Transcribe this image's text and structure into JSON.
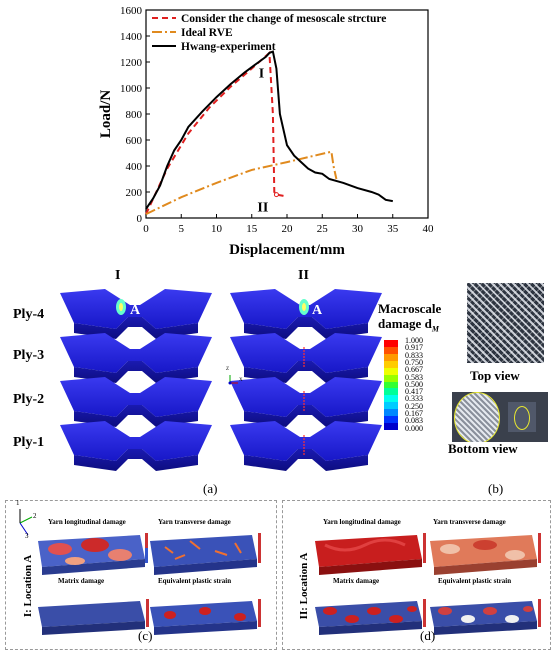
{
  "chart_data": {
    "type": "line",
    "xlabel": "Displacement/mm",
    "ylabel": "Load/N",
    "xlim": [
      0,
      40
    ],
    "ylim": [
      0,
      1600
    ],
    "xticks": [
      "0",
      "5",
      "10",
      "15",
      "20",
      "25",
      "30",
      "35",
      "40"
    ],
    "yticks": [
      "0",
      "200",
      "400",
      "600",
      "800",
      "1000",
      "1200",
      "1400",
      "1600"
    ],
    "legend_position": "top-left",
    "series": [
      {
        "name": "Consider the change of mesoscale strcture",
        "color": "#e02020",
        "dash": "6,4",
        "x": [
          0,
          3,
          6,
          9,
          12,
          15,
          17.5,
          18,
          18.2,
          18.5,
          19.5
        ],
        "y": [
          30,
          380,
          650,
          850,
          1010,
          1150,
          1270,
          800,
          200,
          180,
          170
        ]
      },
      {
        "name": "Ideal RVE",
        "color": "#e08a1e",
        "dash": "10,3,2,3",
        "x": [
          0,
          5,
          10,
          15,
          20,
          26.3,
          26.6,
          27
        ],
        "y": [
          30,
          160,
          270,
          370,
          430,
          510,
          400,
          300
        ]
      },
      {
        "name": "Hwang-experiment",
        "color": "#000000",
        "dash": "",
        "x": [
          0,
          1,
          2,
          3,
          4,
          5,
          6,
          8,
          10,
          12,
          14,
          16,
          17,
          17.5,
          18,
          18.5,
          19,
          20,
          21,
          22,
          23,
          24,
          25,
          26,
          28,
          30,
          32,
          33,
          34,
          35
        ],
        "y": [
          70,
          150,
          250,
          400,
          520,
          600,
          700,
          820,
          930,
          1030,
          1120,
          1200,
          1240,
          1270,
          1280,
          1150,
          800,
          560,
          480,
          430,
          380,
          350,
          340,
          300,
          270,
          230,
          200,
          180,
          140,
          130
        ]
      }
    ],
    "annotations": [
      "I",
      "II"
    ]
  },
  "figure": {
    "col_I": "I",
    "col_II": "II",
    "plies": [
      "Ply-4",
      "Ply-3",
      "Ply-2",
      "Ply-1"
    ],
    "point_label": "A",
    "legend_title_line1": "Macroscale",
    "legend_title_line2": "damage d",
    "legend_subscript": "M",
    "legend_values": [
      "1.000",
      "0.917",
      "0.833",
      "0.750",
      "0.667",
      "0.583",
      "0.500",
      "0.417",
      "0.333",
      "0.250",
      "0.167",
      "0.083",
      "0.000"
    ],
    "legend_colors": [
      "#ff0000",
      "#ff5000",
      "#ff9900",
      "#ffcc00",
      "#eeff00",
      "#99ff00",
      "#33ff33",
      "#00ff99",
      "#00ffee",
      "#00ccff",
      "#0088ff",
      "#0033ff",
      "#0000cc"
    ],
    "axis_z": "Z",
    "axis_x": "X",
    "top_view": "Top view",
    "bottom_view": "Bottom view",
    "label_a": "(a)",
    "label_b": "(b)",
    "label_c": "(c)",
    "label_d": "(d)",
    "loc_I": "I: Location A",
    "loc_II": "II: Location A",
    "triad_1": "1",
    "triad_2": "2",
    "triad_3": "3",
    "yarn_long": "Yarn longitudinal damage",
    "yarn_trans": "Yarn transverse damage",
    "matrix": "Matrix damage",
    "eq_plastic": "Equivalent plastic strain"
  }
}
